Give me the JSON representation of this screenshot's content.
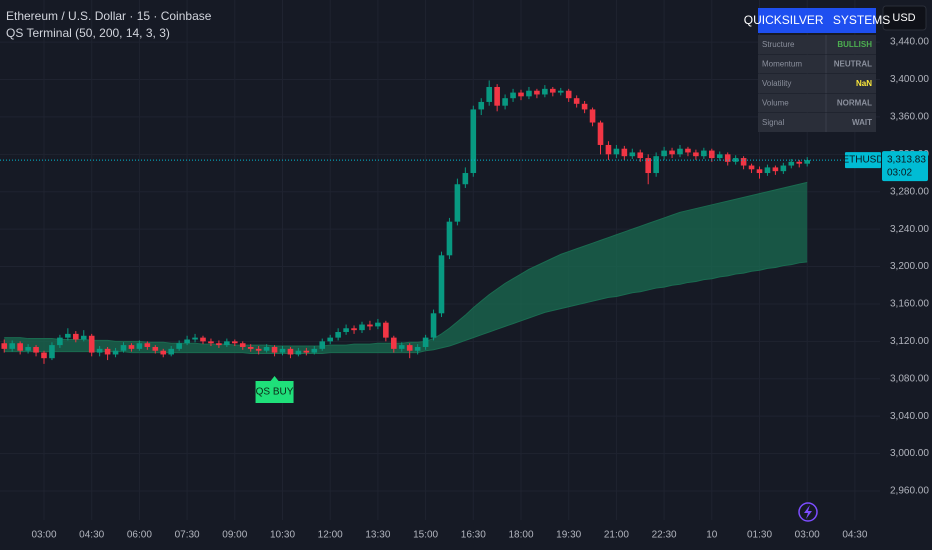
{
  "chart_data": {
    "type": "candlestick",
    "title": "Ethereum / U.S. Dollar · 15 · Coinbase",
    "subtitle": "QS Terminal (50, 200, 14, 3, 3)",
    "currency": "USD",
    "categories": [
      null,
      null,
      null,
      null,
      null,
      "03:00",
      null,
      null,
      null,
      null,
      null,
      "04:30",
      null,
      null,
      null,
      null,
      null,
      "06:00",
      null,
      null,
      null,
      null,
      null,
      "07:30",
      null,
      null,
      null,
      null,
      null,
      "09:00",
      null,
      null,
      null,
      null,
      null,
      "10:30",
      null,
      null,
      null,
      null,
      null,
      "12:00",
      null,
      null,
      null,
      null,
      null,
      "13:30",
      null,
      null,
      null,
      null,
      null,
      "15:00",
      null,
      null,
      null,
      null,
      null,
      "16:30",
      null,
      null,
      null,
      null,
      null,
      "18:00",
      null,
      null,
      null,
      null,
      null,
      "19:30",
      null,
      null,
      null,
      null,
      null,
      "21:00",
      null,
      null,
      null,
      null,
      null,
      "22:30",
      null,
      null,
      null,
      null,
      null,
      "10",
      null,
      null,
      null,
      null,
      null,
      "01:30",
      null,
      null,
      null,
      null,
      null,
      "03:00",
      null,
      null,
      null,
      null,
      null,
      "04:30"
    ],
    "open": [
      3118,
      3112,
      3118,
      3110,
      3114,
      3108,
      3102,
      3116,
      3124,
      3128,
      3122,
      3126,
      3108,
      3112,
      3106,
      3110,
      3116,
      3112,
      3118,
      3114,
      3110,
      3106,
      3112,
      3118,
      3122,
      3124,
      3120,
      3118,
      3116,
      3120,
      3118,
      3114,
      3112,
      3110,
      3114,
      3108,
      3112,
      3106,
      3110,
      3108,
      3112,
      3120,
      3124,
      3130,
      3134,
      3132,
      3138,
      3136,
      3140,
      3124,
      3112,
      3116,
      3110,
      3114,
      3124,
      3150,
      3212,
      3248,
      3288,
      3300,
      3368,
      3376,
      3392,
      3372,
      3380,
      3386,
      3382,
      3388,
      3384,
      3390,
      3386,
      3388,
      3380,
      3374,
      3368,
      3354,
      3330,
      3320,
      3326,
      3318,
      3322,
      3316,
      3300,
      3318,
      3324,
      3320,
      3326,
      3322,
      3318,
      3324,
      3316,
      3320,
      3312,
      3316,
      3308,
      3304,
      3300,
      3306,
      3302,
      3308,
      3312,
      3310,
      null,
      null,
      null,
      null,
      null,
      null
    ],
    "high": [
      3122,
      3121,
      3120,
      3117,
      3116,
      3110,
      3119,
      3127,
      3134,
      3131,
      3132,
      3128,
      3115,
      3114,
      3113,
      3119,
      3118,
      3121,
      3120,
      3116,
      3112,
      3115,
      3121,
      3126,
      3128,
      3126,
      3123,
      3121,
      3123,
      3122,
      3120,
      3117,
      3115,
      3117,
      3116,
      3115,
      3114,
      3113,
      3113,
      3115,
      3123,
      3127,
      3134,
      3138,
      3137,
      3141,
      3142,
      3144,
      3142,
      3126,
      3119,
      3118,
      3117,
      3127,
      3154,
      3216,
      3252,
      3294,
      3306,
      3372,
      3380,
      3399,
      3395,
      3384,
      3390,
      3389,
      3392,
      3390,
      3394,
      3392,
      3391,
      3390,
      3383,
      3377,
      3370,
      3356,
      3334,
      3330,
      3329,
      3326,
      3325,
      3320,
      3322,
      3328,
      3327,
      3330,
      3328,
      3325,
      3327,
      3326,
      3323,
      3322,
      3319,
      3318,
      3310,
      3307,
      3309,
      3308,
      3311,
      3315,
      3314,
      3317,
      null,
      null,
      null,
      null,
      null,
      null
    ],
    "low": [
      3108,
      3109,
      3106,
      3107,
      3104,
      3096,
      3100,
      3113,
      3121,
      3119,
      3120,
      3104,
      3104,
      3100,
      3103,
      3108,
      3109,
      3110,
      3111,
      3107,
      3103,
      3104,
      3110,
      3116,
      3119,
      3117,
      3115,
      3113,
      3114,
      3115,
      3111,
      3109,
      3106,
      3108,
      3104,
      3105,
      3102,
      3104,
      3105,
      3106,
      3110,
      3117,
      3121,
      3127,
      3128,
      3129,
      3132,
      3133,
      3120,
      3108,
      3109,
      3102,
      3106,
      3111,
      3121,
      3146,
      3208,
      3244,
      3284,
      3296,
      3362,
      3372,
      3366,
      3368,
      3376,
      3378,
      3379,
      3380,
      3381,
      3382,
      3383,
      3376,
      3370,
      3364,
      3350,
      3320,
      3314,
      3316,
      3314,
      3315,
      3312,
      3288,
      3296,
      3314,
      3316,
      3317,
      3318,
      3314,
      3315,
      3312,
      3313,
      3308,
      3309,
      3304,
      3300,
      3294,
      3297,
      3298,
      3299,
      3305,
      3306,
      3307,
      null,
      null,
      null,
      null,
      null,
      null
    ],
    "close": [
      3112,
      3118,
      3110,
      3114,
      3108,
      3102,
      3116,
      3124,
      3128,
      3122,
      3126,
      3108,
      3112,
      3106,
      3110,
      3116,
      3112,
      3118,
      3114,
      3110,
      3106,
      3112,
      3118,
      3122,
      3124,
      3120,
      3118,
      3116,
      3120,
      3118,
      3114,
      3112,
      3110,
      3114,
      3108,
      3112,
      3106,
      3110,
      3108,
      3112,
      3120,
      3124,
      3130,
      3134,
      3132,
      3138,
      3136,
      3140,
      3124,
      3112,
      3116,
      3110,
      3114,
      3124,
      3150,
      3212,
      3248,
      3288,
      3300,
      3368,
      3376,
      3392,
      3372,
      3380,
      3386,
      3382,
      3388,
      3384,
      3390,
      3386,
      3388,
      3380,
      3374,
      3368,
      3354,
      3330,
      3320,
      3326,
      3318,
      3322,
      3316,
      3300,
      3318,
      3324,
      3320,
      3326,
      3322,
      3318,
      3324,
      3316,
      3320,
      3312,
      3316,
      3308,
      3304,
      3300,
      3306,
      3302,
      3308,
      3312,
      3310,
      3313.83,
      null,
      null,
      null,
      null,
      null,
      null
    ],
    "band_upper": [
      3124,
      3124,
      3124,
      3123,
      3123,
      3123,
      3123,
      3122,
      3122,
      3122,
      3122,
      3121,
      3121,
      3121,
      3120,
      3120,
      3120,
      3120,
      3119,
      3119,
      3119,
      3118,
      3118,
      3118,
      3118,
      3117,
      3117,
      3117,
      3117,
      3116,
      3116,
      3116,
      3116,
      3116,
      3115,
      3115,
      3115,
      3115,
      3115,
      3115,
      3115,
      3116,
      3116,
      3116,
      3117,
      3117,
      3117,
      3118,
      3118,
      3118,
      3118,
      3119,
      3119,
      3120,
      3123,
      3128,
      3134,
      3141,
      3148,
      3156,
      3163,
      3170,
      3176,
      3182,
      3187,
      3192,
      3197,
      3201,
      3205,
      3209,
      3213,
      3216,
      3219,
      3222,
      3225,
      3228,
      3231,
      3234,
      3237,
      3240,
      3243,
      3246,
      3249,
      3252,
      3255,
      3258,
      3260,
      3262,
      3264,
      3266,
      3268,
      3270,
      3272,
      3274,
      3276,
      3278,
      3280,
      3282,
      3284,
      3286,
      3288,
      3290,
      null,
      null,
      null,
      null,
      null,
      null
    ],
    "band_lower": [
      3109,
      3109,
      3109,
      3109,
      3109,
      3109,
      3109,
      3109,
      3109,
      3109,
      3109,
      3109,
      3109,
      3109,
      3109,
      3109,
      3108,
      3108,
      3108,
      3108,
      3108,
      3108,
      3108,
      3108,
      3108,
      3108,
      3108,
      3108,
      3108,
      3108,
      3108,
      3107,
      3107,
      3107,
      3107,
      3107,
      3107,
      3107,
      3107,
      3107,
      3107,
      3108,
      3108,
      3108,
      3108,
      3108,
      3108,
      3108,
      3108,
      3108,
      3108,
      3108,
      3108,
      3110,
      3111,
      3113,
      3115,
      3118,
      3121,
      3124,
      3127,
      3130,
      3133,
      3136,
      3139,
      3142,
      3145,
      3148,
      3151,
      3153,
      3155,
      3157,
      3159,
      3161,
      3163,
      3165,
      3167,
      3168,
      3170,
      3172,
      3173,
      3175,
      3177,
      3178,
      3180,
      3181,
      3183,
      3184,
      3186,
      3187,
      3189,
      3190,
      3192,
      3193,
      3195,
      3196,
      3198,
      3199,
      3201,
      3202,
      3204,
      3205,
      null,
      null,
      null,
      null,
      null,
      null
    ],
    "up_color": "#089981",
    "down_color": "#f23645",
    "band_color": "#1a6b50",
    "ylim": [
      2929,
      3485
    ],
    "yticks": [
      {
        "value": 3440,
        "label": "3,440.00"
      },
      {
        "value": 3400,
        "label": "3,400.00"
      },
      {
        "value": 3360,
        "label": "3,360.00"
      },
      {
        "value": 3320,
        "label": "3,320.00"
      },
      {
        "value": 3280,
        "label": "3,280.00"
      },
      {
        "value": 3240,
        "label": "3,240.00"
      },
      {
        "value": 3200,
        "label": "3,200.00"
      },
      {
        "value": 3160,
        "label": "3,160.00"
      },
      {
        "value": 3120,
        "label": "3,120.00"
      },
      {
        "value": 3080,
        "label": "3,080.00"
      },
      {
        "value": 3040,
        "label": "3,040.00"
      },
      {
        "value": 3000,
        "label": "3,000.00"
      },
      {
        "value": 2960,
        "label": "2,960.00"
      }
    ],
    "grid": true,
    "signal": {
      "text": "QS BUY",
      "color": "#1fe07a"
    },
    "price_label": {
      "symbol": "ETHUSD",
      "value": 3313.83,
      "label": "3,313.83",
      "countdown": "03:02",
      "color": "#00bcd4"
    }
  },
  "status_table": {
    "title": "QUICKSILVER SYSTEMS",
    "rows": [
      [
        "Structure",
        "BULLISH"
      ],
      [
        "Momentum",
        "NEUTRAL"
      ],
      [
        "Volatility",
        "NaN"
      ],
      [
        "Volume",
        "NORMAL"
      ],
      [
        "Signal",
        "WAIT"
      ]
    ],
    "colors": [
      "#4caf50",
      "#8a8f9c",
      "#ffeb3b",
      "#8a8f9c",
      "#8a8f9c"
    ]
  }
}
